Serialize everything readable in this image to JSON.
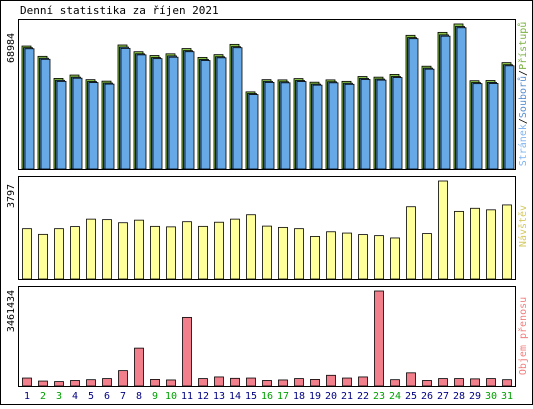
{
  "chart_data": {
    "title": "Denní statistika za říjen 2021",
    "type": "bar",
    "days": [
      "1",
      "2",
      "3",
      "4",
      "5",
      "6",
      "7",
      "8",
      "9",
      "10",
      "11",
      "12",
      "13",
      "14",
      "15",
      "16",
      "17",
      "18",
      "19",
      "20",
      "21",
      "22",
      "23",
      "24",
      "25",
      "26",
      "27",
      "28",
      "29",
      "30",
      "31"
    ],
    "weekend_days": [
      "2",
      "3",
      "9",
      "10",
      "16",
      "17",
      "23",
      "24",
      "30",
      "31"
    ],
    "panels": [
      {
        "id": "hits",
        "ymax_label": "68984",
        "ymax": 68984,
        "side_labels": [
          "Stránek",
          "Souborů",
          "Přístupů"
        ],
        "side_sep": "/",
        "series": [
          {
            "name": "Přístupů",
            "values": [
              58500,
              53600,
              43100,
              44700,
              42500,
              41800,
              59000,
              55800,
              54000,
              54800,
              57300,
              53100,
              54400,
              59300,
              36700,
              42500,
              42400,
              43000,
              41300,
              42400,
              41700,
              44000,
              43700,
              45000,
              63600,
              48900,
              65000,
              69000,
              42000,
              42100,
              50600
            ]
          },
          {
            "name": "Souborů",
            "values": [
              57700,
              52700,
              42200,
              43700,
              41600,
              40900,
              58000,
              54800,
              53000,
              53800,
              56300,
              52100,
              53400,
              58200,
              35900,
              41700,
              41500,
              42100,
              40400,
              41500,
              40800,
              43100,
              42800,
              44000,
              62500,
              48000,
              63800,
              67800,
              41100,
              41200,
              49600
            ]
          },
          {
            "name": "Stránek",
            "values": [
              57200,
              52200,
              41700,
              43200,
              41100,
              40400,
              57400,
              54300,
              52500,
              53200,
              55800,
              51600,
              52900,
              57700,
              35400,
              41200,
              41000,
              41600,
              39900,
              41000,
              40300,
              42600,
              42300,
              43500,
              62000,
              47500,
              63200,
              67200,
              40600,
              40700,
              49100
            ]
          }
        ]
      },
      {
        "id": "visits",
        "ymax_label": "3797",
        "ymax": 3797,
        "side_labels": [
          "Návštěv"
        ],
        "series": [
          {
            "name": "Návštěv",
            "values": [
              1950,
              1730,
              1950,
              2030,
              2320,
              2300,
              2180,
              2280,
              2040,
              2020,
              2220,
              2040,
              2200,
              2320,
              2490,
              2050,
              2000,
              1950,
              1650,
              1830,
              1780,
              1720,
              1680,
              1590,
              2800,
              1760,
              3797,
              2620,
              2740,
              2680,
              2870
            ]
          }
        ]
      },
      {
        "id": "bytes",
        "ymax_label": "3461434",
        "ymax": 3461434,
        "side_labels": [
          "Objem přenosu"
        ],
        "series": [
          {
            "name": "Objem přenosu",
            "values": [
              290000,
              180000,
              160000,
              200000,
              230000,
              270000,
              560000,
              1380000,
              240000,
              220000,
              2500000,
              270000,
              330000,
              280000,
              290000,
              200000,
              220000,
              270000,
              240000,
              390000,
              290000,
              330000,
              3461434,
              230000,
              480000,
              200000,
              270000,
              270000,
              260000,
              270000,
              230000
            ]
          }
        ]
      }
    ],
    "colors": {
      "hits": "#66a9e6",
      "files": "#4f8dc3",
      "pages": "#8bc34a",
      "visits": "#ffff9b",
      "bytes": "#f2808c",
      "weekday_label": "#000080",
      "weekend_label": "#00a000",
      "hits_label": "#80b4f0",
      "files_label": "#5a8fd0",
      "pages_label": "#7bb040",
      "visits_label": "#d4c95f",
      "bytes_label": "#f08080",
      "frame": "#000000",
      "background": "#ffffff"
    }
  }
}
